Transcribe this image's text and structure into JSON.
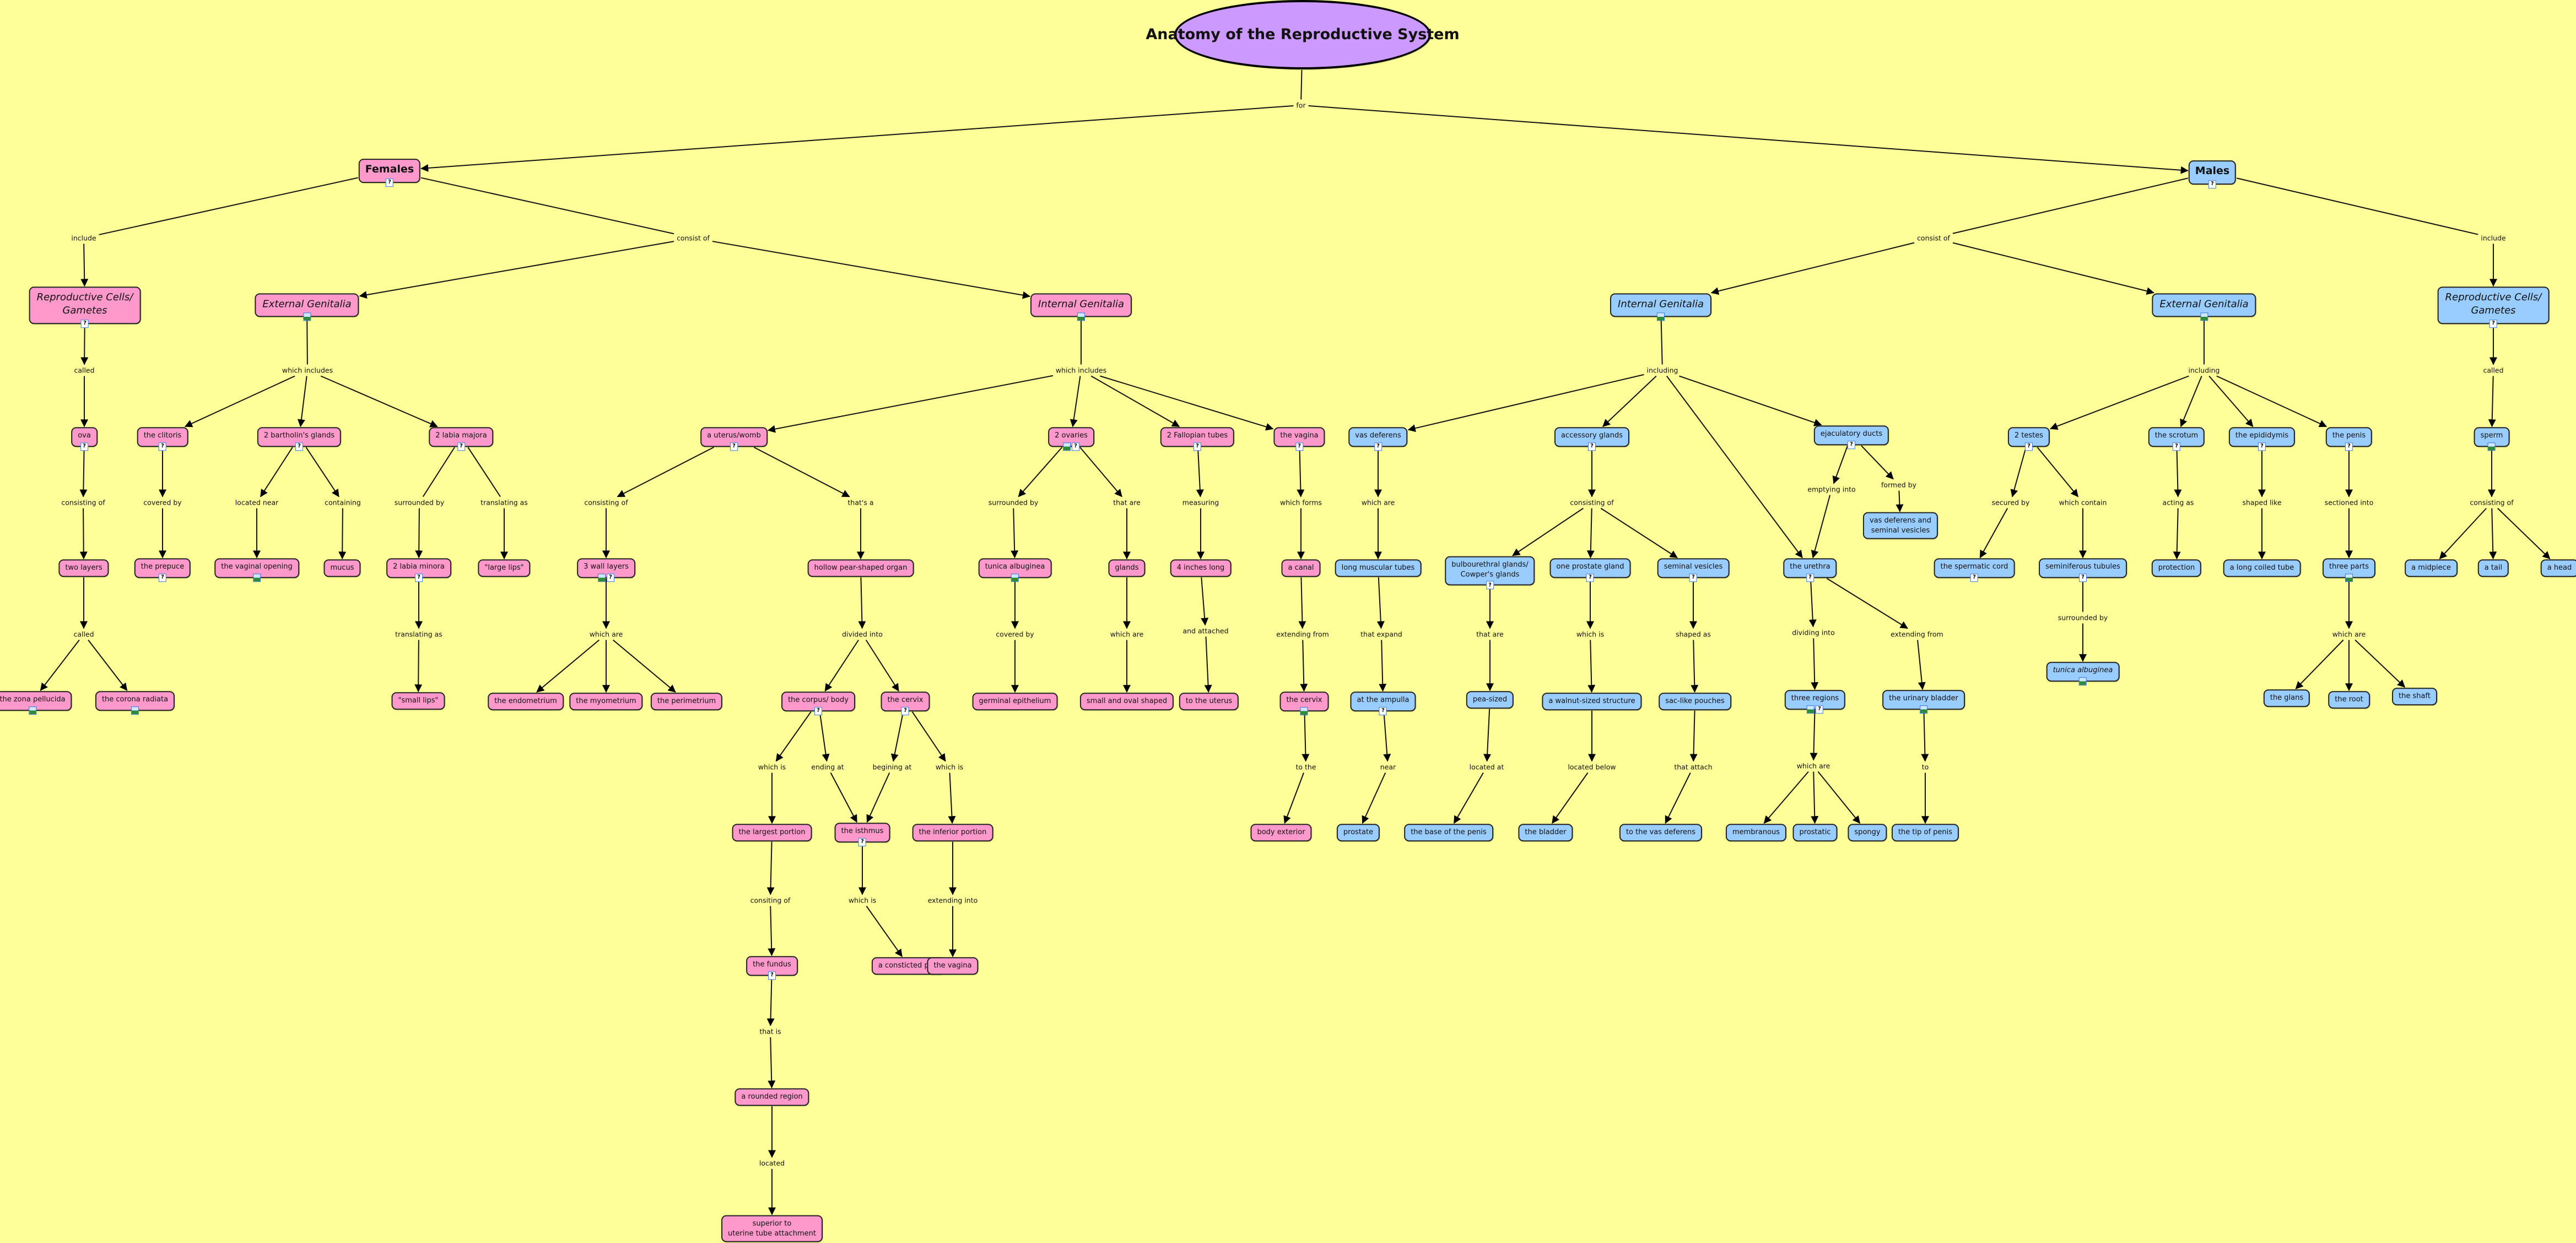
{
  "colors": {
    "background": "#FFFF99",
    "female": "#FF99CC",
    "male": "#99CCFF",
    "title": "#CC99FF"
  },
  "concepts": {
    "title": {
      "label": "Anatomy of the Reproductive System",
      "group": "title"
    },
    "females": {
      "label": "Females",
      "group": "female",
      "icons": [
        "doc"
      ]
    },
    "males": {
      "label": "Males",
      "group": "male",
      "icons": [
        "doc"
      ]
    },
    "f_cells": {
      "label": "Reproductive Cells/\nGametes",
      "group": "female",
      "icons": [
        "doc"
      ]
    },
    "f_ext": {
      "label": "External Genitalia",
      "group": "female",
      "icons": [
        "img"
      ]
    },
    "f_int": {
      "label": "Internal Genitalia",
      "group": "female",
      "icons": [
        "img"
      ]
    },
    "ova": {
      "label": "ova",
      "group": "female",
      "icons": [
        "doc"
      ]
    },
    "clitoris": {
      "label": "the clitoris",
      "group": "female",
      "icons": [
        "doc"
      ]
    },
    "bartholin": {
      "label": "2 bartholin's glands",
      "group": "female",
      "icons": [
        "doc"
      ]
    },
    "labia_majora": {
      "label": "2 labia majora",
      "group": "female",
      "icons": [
        "doc"
      ]
    },
    "uterus": {
      "label": "a uterus/womb",
      "group": "female",
      "icons": [
        "doc"
      ]
    },
    "ovaries": {
      "label": "2 ovaries",
      "group": "female",
      "icons": [
        "img",
        "doc"
      ]
    },
    "fallopian": {
      "label": "2 Fallopian tubes",
      "group": "female",
      "icons": [
        "doc"
      ]
    },
    "vagina": {
      "label": "the vagina",
      "group": "female",
      "icons": [
        "doc"
      ]
    },
    "two_layers": {
      "label": "two layers",
      "group": "female"
    },
    "prepuce": {
      "label": "the prepuce",
      "group": "female",
      "icons": [
        "doc"
      ]
    },
    "vaginal_opening": {
      "label": "the vaginal opening",
      "group": "female",
      "icons": [
        "img"
      ]
    },
    "mucus": {
      "label": "mucus",
      "group": "female"
    },
    "labia_minora": {
      "label": "2 labia minora",
      "group": "female",
      "icons": [
        "doc"
      ]
    },
    "large_lips": {
      "label": "\"large lips\"",
      "group": "female"
    },
    "wall_layers": {
      "label": "3 wall layers",
      "group": "female",
      "icons": [
        "img",
        "doc"
      ]
    },
    "hollow": {
      "label": "hollow pear-shaped organ",
      "group": "female"
    },
    "tunica_f": {
      "label": "tunica albuginea",
      "group": "female",
      "icons": [
        "img"
      ]
    },
    "glands": {
      "label": "glands",
      "group": "female"
    },
    "inches": {
      "label": "4 inches long",
      "group": "female"
    },
    "canal": {
      "label": "a canal",
      "group": "female"
    },
    "zona": {
      "label": "the zona pellucida",
      "group": "female",
      "icons": [
        "img"
      ]
    },
    "corona": {
      "label": "the corona radiata",
      "group": "female",
      "icons": [
        "img"
      ]
    },
    "small_lips": {
      "label": "\"small lips\"",
      "group": "female"
    },
    "endometrium": {
      "label": "the endometrium",
      "group": "female"
    },
    "myometrium": {
      "label": "the myometrium",
      "group": "female"
    },
    "perimetrium": {
      "label": "the perimetrium",
      "group": "female"
    },
    "corpus": {
      "label": "the corpus/ body",
      "group": "female",
      "icons": [
        "doc"
      ]
    },
    "cervix": {
      "label": "the cervix",
      "group": "female",
      "icons": [
        "doc"
      ]
    },
    "germinal": {
      "label": "germinal epithelium",
      "group": "female"
    },
    "small_oval": {
      "label": "small and oval shaped",
      "group": "female"
    },
    "to_uterus": {
      "label": "to the uterus",
      "group": "female"
    },
    "cervix2": {
      "label": "the cervix",
      "group": "female",
      "icons": [
        "img"
      ]
    },
    "largest": {
      "label": "the largest portion",
      "group": "female"
    },
    "isthmus": {
      "label": "the isthmus",
      "group": "female",
      "icons": [
        "doc"
      ]
    },
    "inferior": {
      "label": "the inferior portion",
      "group": "female"
    },
    "body_ext": {
      "label": "body exterior",
      "group": "female"
    },
    "fundus": {
      "label": "the fundus",
      "group": "female",
      "icons": [
        "doc"
      ]
    },
    "constricted": {
      "label": "a consticted part",
      "group": "female"
    },
    "vagina2": {
      "label": "the vagina",
      "group": "female"
    },
    "rounded": {
      "label": "a rounded region",
      "group": "female"
    },
    "superior": {
      "label": "superior to\nuterine tube attachment",
      "group": "female"
    },
    "m_int": {
      "label": "Internal Genitalia",
      "group": "male",
      "icons": [
        "img"
      ]
    },
    "m_ext": {
      "label": "External Genitalia",
      "group": "male",
      "icons": [
        "img"
      ]
    },
    "m_cells": {
      "label": "Reproductive Cells/\nGametes",
      "group": "male",
      "icons": [
        "doc"
      ]
    },
    "vas": {
      "label": "vas deferens",
      "group": "male",
      "icons": [
        "doc"
      ]
    },
    "accessory": {
      "label": "accessory glands",
      "group": "male",
      "icons": [
        "doc"
      ]
    },
    "ejac": {
      "label": "ejaculatory ducts",
      "group": "male",
      "icons": [
        "doc"
      ]
    },
    "vas_sem": {
      "label": "vas deferens and\nseminal vesicles",
      "group": "male"
    },
    "long_tubes": {
      "label": "long muscular tubes",
      "group": "male"
    },
    "bulbo": {
      "label": "bulbourethral glands/\nCowper's glands",
      "group": "male",
      "icons": [
        "doc"
      ]
    },
    "prostate_gland": {
      "label": "one prostate gland",
      "group": "male",
      "icons": [
        "doc"
      ]
    },
    "sem_ves": {
      "label": "seminal vesicles",
      "group": "male",
      "icons": [
        "doc"
      ]
    },
    "urethra": {
      "label": "the urethra",
      "group": "male",
      "icons": [
        "doc"
      ]
    },
    "ampulla": {
      "label": "at the ampulla",
      "group": "male",
      "icons": [
        "doc"
      ]
    },
    "pea": {
      "label": "pea-sized",
      "group": "male"
    },
    "walnut": {
      "label": "a walnut-sized structure",
      "group": "male"
    },
    "sac": {
      "label": "sac-like pouches",
      "group": "male"
    },
    "regions": {
      "label": "three regions",
      "group": "male",
      "icons": [
        "img",
        "doc"
      ]
    },
    "bladder_u": {
      "label": "the urinary bladder",
      "group": "male",
      "icons": [
        "img"
      ]
    },
    "prostate": {
      "label": "prostate",
      "group": "male"
    },
    "base_penis": {
      "label": "the base of the penis",
      "group": "male"
    },
    "bladder": {
      "label": "the bladder",
      "group": "male"
    },
    "to_vas": {
      "label": "to the vas deferens",
      "group": "male"
    },
    "membranous": {
      "label": "membranous",
      "group": "male"
    },
    "prostatic": {
      "label": "prostatic",
      "group": "male"
    },
    "spongy": {
      "label": "spongy",
      "group": "male"
    },
    "tip": {
      "label": "the tip of penis",
      "group": "male"
    },
    "testes": {
      "label": "2 testes",
      "group": "male",
      "icons": [
        "doc"
      ]
    },
    "scrotum": {
      "label": "the scrotum",
      "group": "male",
      "icons": [
        "doc"
      ]
    },
    "epididymis": {
      "label": "the epididymis",
      "group": "male",
      "icons": [
        "doc"
      ]
    },
    "penis": {
      "label": "the penis",
      "group": "male",
      "icons": [
        "doc"
      ]
    },
    "spermatic": {
      "label": "the spermatic cord",
      "group": "male",
      "icons": [
        "doc"
      ]
    },
    "seminiferous": {
      "label": "seminiferous tubules",
      "group": "male",
      "icons": [
        "doc"
      ]
    },
    "protection": {
      "label": "protection",
      "group": "male"
    },
    "coiled": {
      "label": "a long coiled tube",
      "group": "male"
    },
    "three_parts": {
      "label": "three parts",
      "group": "male",
      "icons": [
        "img"
      ]
    },
    "tunica_m": {
      "label": "tunica albuginea",
      "group": "male",
      "icons": [
        "img"
      ]
    },
    "glans": {
      "label": "the glans",
      "group": "male"
    },
    "root": {
      "label": "the root",
      "group": "male"
    },
    "shaft": {
      "label": "the shaft",
      "group": "male"
    },
    "sperm": {
      "label": "sperm",
      "group": "male",
      "icons": [
        "img"
      ]
    },
    "midpiece": {
      "label": "a midpiece",
      "group": "male"
    },
    "tail": {
      "label": "a tail",
      "group": "male"
    },
    "head": {
      "label": "a head",
      "group": "male"
    }
  },
  "links": {
    "l_for": {
      "label": "for",
      "from": "title",
      "to": [
        "females",
        "males"
      ]
    },
    "l_f_inc": {
      "label": "include",
      "from": "females",
      "to": [
        "f_cells"
      ]
    },
    "l_f_con": {
      "label": "consist of",
      "from": "females",
      "to": [
        "f_ext",
        "f_int"
      ]
    },
    "l_m_con": {
      "label": "consist of",
      "from": "males",
      "to": [
        "m_int",
        "m_ext"
      ]
    },
    "l_m_inc": {
      "label": "include",
      "from": "males",
      "to": [
        "m_cells"
      ]
    },
    "l1": {
      "label": "called",
      "from": "f_cells",
      "to": [
        "ova"
      ]
    },
    "l2": {
      "label": "which includes",
      "from": "f_ext",
      "to": [
        "clitoris",
        "bartholin",
        "labia_majora"
      ]
    },
    "l3": {
      "label": "which includes",
      "from": "f_int",
      "to": [
        "uterus",
        "ovaries",
        "fallopian",
        "vagina"
      ]
    },
    "l4": {
      "label": "consisting of",
      "from": "ova",
      "to": [
        "two_layers"
      ]
    },
    "l5": {
      "label": "covered by",
      "from": "clitoris",
      "to": [
        "prepuce"
      ]
    },
    "l6": {
      "label": "located near",
      "from": "bartholin",
      "to": [
        "vaginal_opening"
      ]
    },
    "l7": {
      "label": "containing",
      "from": "bartholin",
      "to": [
        "mucus"
      ]
    },
    "l8": {
      "label": "surrounded by",
      "from": "labia_majora",
      "to": [
        "labia_minora"
      ]
    },
    "l9": {
      "label": "translating as",
      "from": "labia_majora",
      "to": [
        "large_lips"
      ]
    },
    "l10": {
      "label": "called",
      "from": "two_layers",
      "to": [
        "zona",
        "corona"
      ]
    },
    "l11": {
      "label": "translating as",
      "from": "labia_minora",
      "to": [
        "small_lips"
      ]
    },
    "l12": {
      "label": "consisting of",
      "from": "uterus",
      "to": [
        "wall_layers"
      ]
    },
    "l13": {
      "label": "that's a",
      "from": "uterus",
      "to": [
        "hollow"
      ]
    },
    "l14": {
      "label": "surrounded by",
      "from": "ovaries",
      "to": [
        "tunica_f"
      ]
    },
    "l15": {
      "label": "that are",
      "from": "ovaries",
      "to": [
        "glands"
      ]
    },
    "l16": {
      "label": "measuring",
      "from": "fallopian",
      "to": [
        "inches"
      ]
    },
    "l17": {
      "label": "which forms",
      "from": "vagina",
      "to": [
        "canal"
      ]
    },
    "l18": {
      "label": "which are",
      "from": "wall_layers",
      "to": [
        "endometrium",
        "myometrium",
        "perimetrium"
      ]
    },
    "l19": {
      "label": "divided into",
      "from": "hollow",
      "to": [
        "corpus",
        "cervix"
      ]
    },
    "l20": {
      "label": "covered by",
      "from": "tunica_f",
      "to": [
        "germinal"
      ]
    },
    "l21": {
      "label": "which are",
      "from": "glands",
      "to": [
        "small_oval"
      ]
    },
    "l22": {
      "label": "and attached",
      "from": "inches",
      "to": [
        "to_uterus"
      ]
    },
    "l23": {
      "label": "extending from",
      "from": "canal",
      "to": [
        "cervix2"
      ]
    },
    "l24": {
      "label": "which is",
      "from": "corpus",
      "to": [
        "largest"
      ]
    },
    "l25": {
      "label": "ending at",
      "from": "corpus",
      "to": [
        "isthmus"
      ]
    },
    "l26": {
      "label": "begining at",
      "from": "cervix",
      "to": [
        "isthmus"
      ]
    },
    "l27": {
      "label": "which is",
      "from": "cervix",
      "to": [
        "inferior"
      ]
    },
    "l28": {
      "label": "to the",
      "from": "cervix2",
      "to": [
        "body_ext"
      ]
    },
    "l29": {
      "label": "consiting of",
      "from": "largest",
      "to": [
        "fundus"
      ]
    },
    "l30": {
      "label": "which is",
      "from": "isthmus",
      "to": [
        "constricted"
      ]
    },
    "l31": {
      "label": "extending into",
      "from": "inferior",
      "to": [
        "vagina2"
      ]
    },
    "l32": {
      "label": "that is",
      "from": "fundus",
      "to": [
        "rounded"
      ]
    },
    "l33": {
      "label": "located",
      "from": "rounded",
      "to": [
        "superior"
      ]
    },
    "l34": {
      "label": "including",
      "from": "m_int",
      "to": [
        "vas",
        "accessory",
        "urethra",
        "ejac"
      ]
    },
    "l35": {
      "label": "which are",
      "from": "vas",
      "to": [
        "long_tubes"
      ]
    },
    "l36": {
      "label": "consisting of",
      "from": "accessory",
      "to": [
        "bulbo",
        "prostate_gland",
        "sem_ves"
      ]
    },
    "l37": {
      "label": "emptying into",
      "from": "ejac",
      "to": [
        "urethra"
      ]
    },
    "l38": {
      "label": "formed by",
      "from": "ejac",
      "to": [
        "vas_sem"
      ]
    },
    "l39": {
      "label": "that expand",
      "from": "long_tubes",
      "to": [
        "ampulla"
      ]
    },
    "l40": {
      "label": "that are",
      "from": "bulbo",
      "to": [
        "pea"
      ]
    },
    "l41": {
      "label": "which is",
      "from": "prostate_gland",
      "to": [
        "walnut"
      ]
    },
    "l42": {
      "label": "shaped as",
      "from": "sem_ves",
      "to": [
        "sac"
      ]
    },
    "l43": {
      "label": "dividing into",
      "from": "urethra",
      "to": [
        "regions"
      ]
    },
    "l44": {
      "label": "extending from",
      "from": "urethra",
      "to": [
        "bladder_u"
      ]
    },
    "l45": {
      "label": "near",
      "from": "ampulla",
      "to": [
        "prostate"
      ]
    },
    "l46": {
      "label": "located at",
      "from": "pea",
      "to": [
        "base_penis"
      ]
    },
    "l47": {
      "label": "located below",
      "from": "walnut",
      "to": [
        "bladder"
      ]
    },
    "l48": {
      "label": "that attach",
      "from": "sac",
      "to": [
        "to_vas"
      ]
    },
    "l49": {
      "label": "which are",
      "from": "regions",
      "to": [
        "membranous",
        "prostatic",
        "spongy"
      ]
    },
    "l50": {
      "label": "to",
      "from": "bladder_u",
      "to": [
        "tip"
      ]
    },
    "l51": {
      "label": "including",
      "from": "m_ext",
      "to": [
        "testes",
        "scrotum",
        "epididymis",
        "penis"
      ]
    },
    "l52": {
      "label": "secured by",
      "from": "testes",
      "to": [
        "spermatic"
      ]
    },
    "l53": {
      "label": "which contain",
      "from": "testes",
      "to": [
        "seminiferous"
      ]
    },
    "l54": {
      "label": "acting as",
      "from": "scrotum",
      "to": [
        "protection"
      ]
    },
    "l55": {
      "label": "shaped like",
      "from": "epididymis",
      "to": [
        "coiled"
      ]
    },
    "l56": {
      "label": "sectioned into",
      "from": "penis",
      "to": [
        "three_parts"
      ]
    },
    "l57": {
      "label": "surrounded by",
      "from": "seminiferous",
      "to": [
        "tunica_m"
      ]
    },
    "l58": {
      "label": "which are",
      "from": "three_parts",
      "to": [
        "glans",
        "root",
        "shaft"
      ]
    },
    "l59": {
      "label": "called",
      "from": "m_cells",
      "to": [
        "sperm"
      ]
    },
    "l60": {
      "label": "consisting of",
      "from": "sperm",
      "to": [
        "midpiece",
        "tail",
        "head"
      ]
    }
  }
}
